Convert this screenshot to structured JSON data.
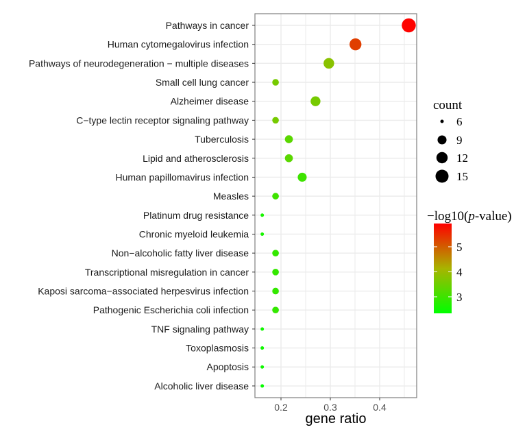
{
  "chart_data": {
    "type": "scatter",
    "title": "",
    "xlabel": "gene ratio",
    "ylabel": "",
    "xlim": [
      0.149,
      0.47
    ],
    "xticks": [
      0.2,
      0.3,
      0.4
    ],
    "xtick_labels": [
      "0.2",
      "0.3",
      "0.4"
    ],
    "grid": true,
    "categories": [
      "Pathways in cancer",
      "Human cytomegalovirus infection",
      "Pathways of neurodegeneration − multiple diseases",
      "Small cell lung cancer",
      "Alzheimer disease",
      "C−type lectin receptor signaling pathway",
      "Tuberculosis",
      "Lipid and atherosclerosis",
      "Human papillomavirus infection",
      "Measles",
      "Platinum drug resistance",
      "Chronic myeloid leukemia",
      "Non−alcoholic fatty liver disease",
      "Transcriptional misregulation in cancer",
      "Kaposi sarcoma−associated herpesvirus infection",
      "Pathogenic Escherichia coli infection",
      "TNF signaling pathway",
      "Toxoplasmosis",
      "Apoptosis",
      "Alcoholic liver disease"
    ],
    "gene_ratio": [
      0.459,
      0.351,
      0.297,
      0.189,
      0.27,
      0.189,
      0.216,
      0.216,
      0.243,
      0.189,
      0.162,
      0.162,
      0.189,
      0.189,
      0.189,
      0.189,
      0.162,
      0.162,
      0.162,
      0.162
    ],
    "count": [
      17,
      13,
      11,
      7,
      10,
      7,
      8,
      8,
      9,
      7,
      6,
      6,
      7,
      7,
      7,
      7,
      6,
      6,
      6,
      6
    ],
    "neg_log10_p": [
      5.9,
      5.3,
      3.8,
      3.6,
      3.6,
      3.6,
      3.3,
      3.3,
      3.0,
      3.0,
      2.6,
      2.6,
      2.9,
      2.9,
      2.9,
      2.9,
      2.5,
      2.5,
      2.5,
      2.4
    ],
    "size_legend": {
      "title": "count",
      "values": [
        6,
        9,
        12,
        15
      ],
      "labels": [
        "6",
        "9",
        "12",
        "15"
      ]
    },
    "color_legend": {
      "title_prefix": "−log10(",
      "title_italic": "p",
      "title_suffix": "-value)",
      "range": [
        2.34,
        5.93
      ],
      "ticks": [
        5,
        4,
        3
      ],
      "tick_labels": [
        "5",
        "4",
        "3"
      ],
      "low_color": "#00ff00",
      "high_color": "#ff0000"
    },
    "legend_placement": "right"
  }
}
